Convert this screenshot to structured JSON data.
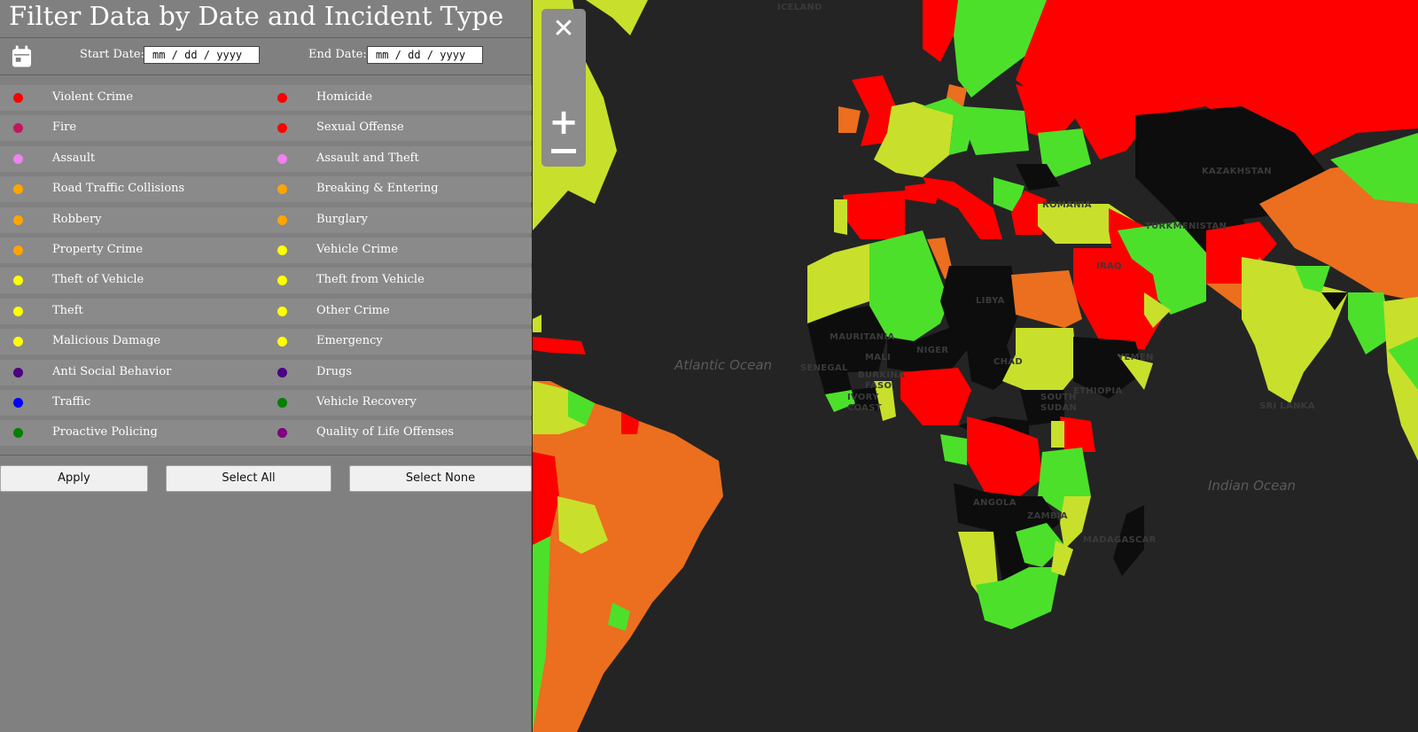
{
  "panel": {
    "title": "Filter Data by Date and Incident Type",
    "calendar_icon": "calendar-icon",
    "start_label": "Start Date:",
    "start_placeholder": "mm / dd / yyyy",
    "end_label": "End Date:",
    "end_placeholder": "mm / dd / yyyy"
  },
  "categories": {
    "left": [
      {
        "label": "Violent Crime",
        "color": "#ff0000"
      },
      {
        "label": "Fire",
        "color": "#c2185b"
      },
      {
        "label": "Assault",
        "color": "#ee82ee"
      },
      {
        "label": "Road Traffic Collisions",
        "color": "#ffa500"
      },
      {
        "label": "Robbery",
        "color": "#ffa500"
      },
      {
        "label": "Property Crime",
        "color": "#ffa500"
      },
      {
        "label": "Theft of Vehicle",
        "color": "#ffff00"
      },
      {
        "label": "Theft",
        "color": "#ffff00"
      },
      {
        "label": "Malicious Damage",
        "color": "#ffff00"
      },
      {
        "label": "Anti Social Behavior",
        "color": "#4b0082"
      },
      {
        "label": "Traffic",
        "color": "#0000ff"
      },
      {
        "label": "Proactive Policing",
        "color": "#008000"
      }
    ],
    "right": [
      {
        "label": "Homicide",
        "color": "#ff0000"
      },
      {
        "label": "Sexual Offense",
        "color": "#ff0000"
      },
      {
        "label": "Assault and Theft",
        "color": "#ee82ee"
      },
      {
        "label": "Breaking & Entering",
        "color": "#ffa500"
      },
      {
        "label": "Burglary",
        "color": "#ffa500"
      },
      {
        "label": "Vehicle Crime",
        "color": "#ffff00"
      },
      {
        "label": "Theft from Vehicle",
        "color": "#ffff00"
      },
      {
        "label": "Other Crime",
        "color": "#ffff00"
      },
      {
        "label": "Emergency",
        "color": "#ffff00"
      },
      {
        "label": "Drugs",
        "color": "#4b0082"
      },
      {
        "label": "Vehicle Recovery",
        "color": "#008000"
      },
      {
        "label": "Quality of Life Offenses",
        "color": "#800080"
      }
    ]
  },
  "buttons": {
    "apply": "Apply",
    "select_all": "Select All",
    "select_none": "Select None"
  },
  "map": {
    "colors": {
      "red": "#ff0000",
      "green": "#4ce02b",
      "yellow": "#c8e02b",
      "orange": "#eb6f1e",
      "black": "#0d0d0d",
      "water": "#242424"
    },
    "labels": {
      "iceland": "ICELAND",
      "kazakhstan": "KAZAKHSTAN",
      "turkmenistan": "TURKMENISTAN",
      "iraq": "IRAQ",
      "libya": "LIBYA",
      "mauritania": "MAURITANIA",
      "mali": "MALI",
      "niger": "NIGER",
      "chad": "CHAD",
      "senegal": "SENEGAL",
      "burkina_faso_1": "BURKINA",
      "burkina_faso_2": "FASO",
      "ivory_coast_1": "IVORY",
      "ivory_coast_2": "COAST",
      "south_sudan_1": "SOUTH",
      "south_sudan_2": "SUDAN",
      "ethiopia": "ETHIOPIA",
      "yemen": "YEMEN",
      "angola": "ANGOLA",
      "zambia": "ZAMBIA",
      "madagascar": "MADAGASCAR",
      "sri_lanka": "SRI LANKA",
      "romania": "ROMANIA"
    },
    "oceans": {
      "atlantic": "Atlantic Ocean",
      "indian": "Indian Ocean"
    },
    "controls": {
      "close_icon": "close-icon",
      "zoom_in_icon": "zoom-in-icon",
      "zoom_out_icon": "zoom-out-icon"
    }
  }
}
